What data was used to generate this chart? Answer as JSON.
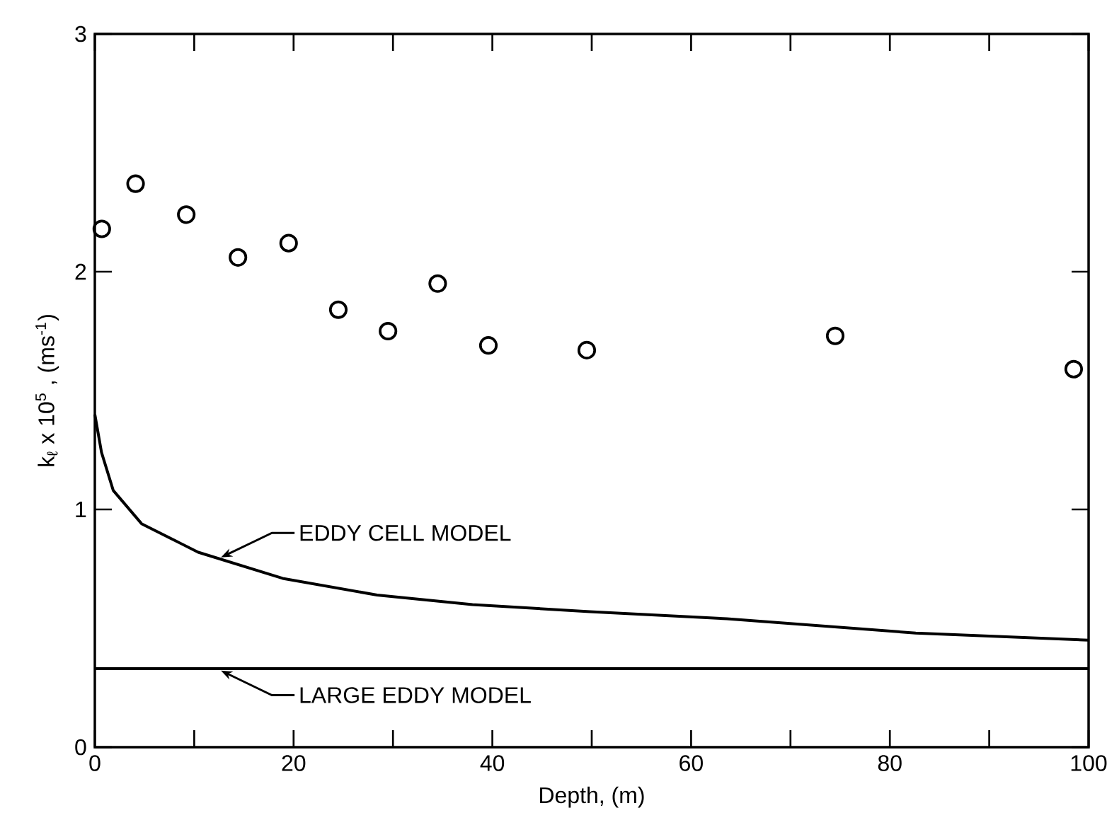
{
  "chart_data": {
    "type": "line",
    "xlabel": "Depth, (m)",
    "ylabel": "k$_{ℓ}$ x 10$^{5}$ , (ms$^{-1}$)",
    "xlim": [
      0,
      100
    ],
    "ylim": [
      0,
      3
    ],
    "xticks": [
      0,
      {
        "value": 10,
        "label": null
      },
      20,
      {
        "value": 30,
        "label": null
      },
      40,
      {
        "value": 50,
        "label": null
      },
      60,
      {
        "value": 70,
        "label": null
      },
      80,
      {
        "value": 90,
        "label": null
      },
      100
    ],
    "yticks": [
      0,
      1,
      2,
      3
    ],
    "series": [
      {
        "type": "scatter",
        "marker": "circle",
        "color": "#000000",
        "x": [
          0.7,
          4.1,
          9.2,
          14.4,
          19.5,
          24.5,
          29.5,
          34.5,
          39.6,
          49.5,
          74.5,
          98.5
        ],
        "values": [
          2.18,
          2.37,
          2.24,
          2.06,
          2.12,
          1.84,
          1.75,
          1.95,
          1.69,
          1.67,
          1.73,
          1.59
        ]
      },
      {
        "line_style": "solid",
        "color": "#000000",
        "x": [
          0,
          0.67,
          1.85,
          4.7,
          10.4,
          18.9,
          28.4,
          38,
          49.8,
          63.6,
          82.6,
          100
        ],
        "values": [
          1.4,
          1.24,
          1.08,
          0.94,
          0.82,
          0.71,
          0.64,
          0.6,
          0.57,
          0.54,
          0.48,
          0.45
        ]
      },
      {
        "line_style": "solid",
        "color": "#000000",
        "x": [
          0,
          100
        ],
        "values": [
          0.33,
          0.33
        ]
      }
    ],
    "annotations": [
      {
        "text": "EDDY CELL MODEL",
        "x": 12.5,
        "y": 0.79
      },
      {
        "text": "LARGE EDDY MODEL",
        "x": 12.5,
        "y": 0.33
      }
    ]
  }
}
